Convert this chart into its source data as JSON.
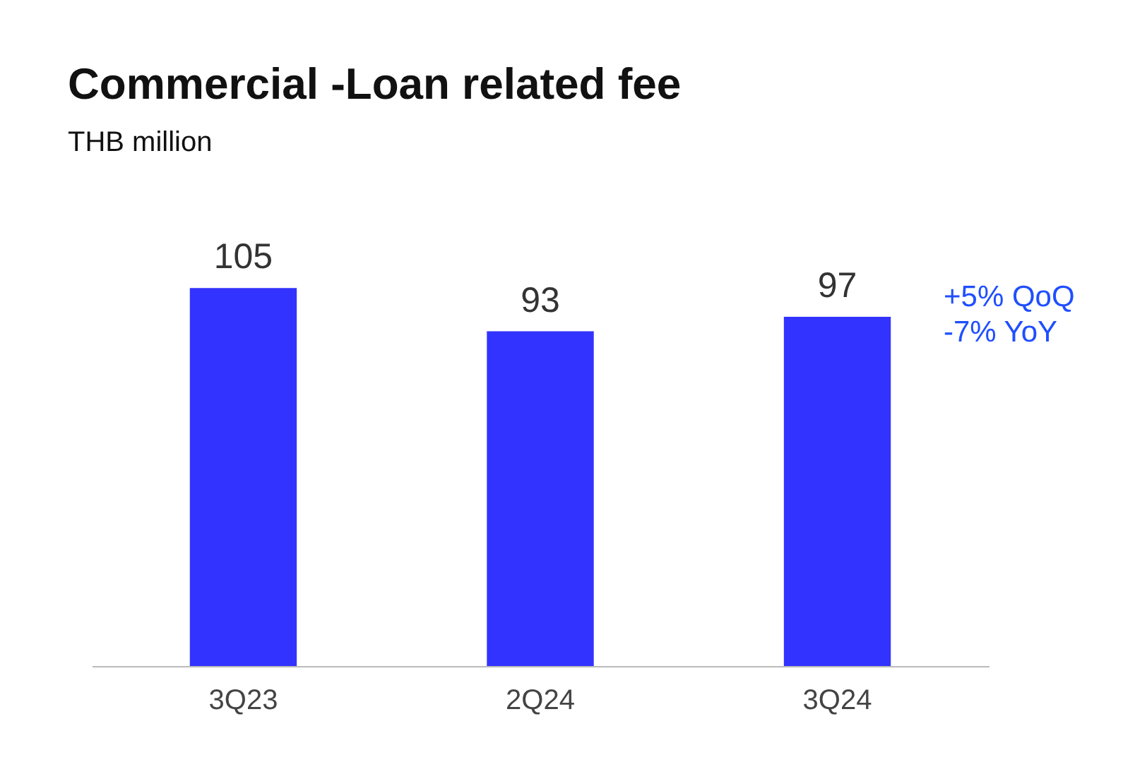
{
  "chart_data": {
    "type": "bar",
    "title": "Commercial -Loan related fee",
    "subtitle": "THB million",
    "categories": [
      "3Q23",
      "2Q24",
      "3Q24"
    ],
    "values": [
      105,
      93,
      97
    ],
    "color": "#3333ff",
    "data_labels": true,
    "annotations": [
      "+5% QoQ",
      "-7% YoY"
    ]
  }
}
